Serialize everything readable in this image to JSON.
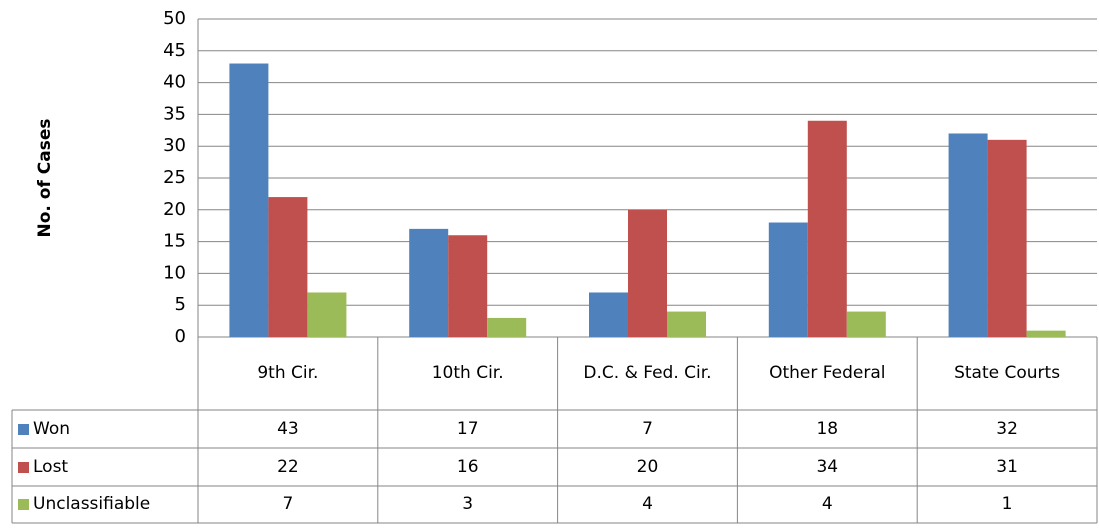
{
  "chart_data": {
    "type": "bar",
    "y_axis_label": "No. of Cases",
    "categories": [
      "9th Cir.",
      "10th Cir.",
      "D.C. & Fed. Cir.",
      "Other Federal",
      "State Courts"
    ],
    "series": [
      {
        "name": "Won",
        "color": "#4f81bd",
        "values": [
          43,
          17,
          7,
          18,
          32
        ]
      },
      {
        "name": "Lost",
        "color": "#c0504d",
        "values": [
          22,
          16,
          20,
          34,
          31
        ]
      },
      {
        "name": "Unclassifiable",
        "color": "#9bbb59",
        "values": [
          7,
          3,
          4,
          4,
          1
        ]
      }
    ],
    "ylim": [
      0,
      50
    ],
    "yticks": [
      0,
      5,
      10,
      15,
      20,
      25,
      30,
      35,
      40,
      45,
      50
    ],
    "grid": true
  }
}
